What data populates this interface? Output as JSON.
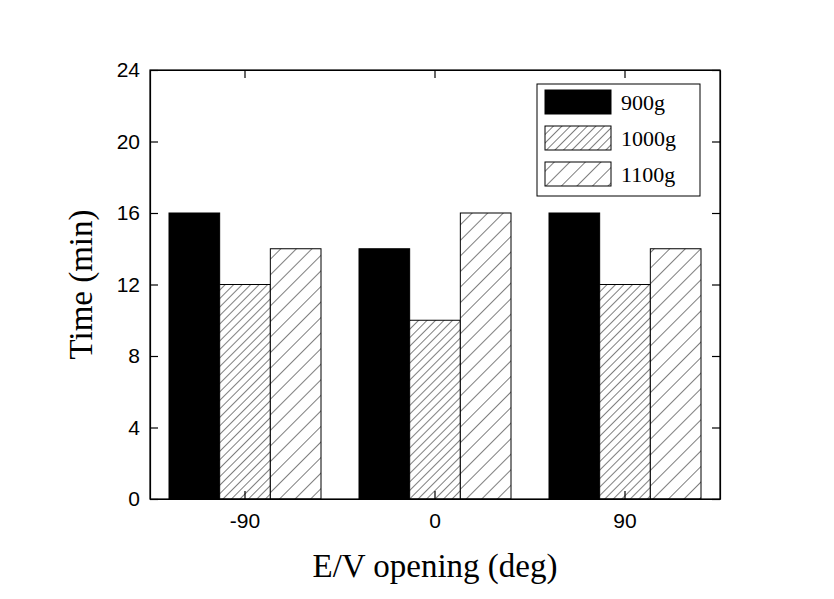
{
  "chart_data": {
    "type": "bar",
    "x_label": "E/V opening (deg)",
    "y_label": "Time (min)",
    "categories": [
      "-90",
      "0",
      "90"
    ],
    "series": [
      {
        "name": "900g",
        "color": "#000000",
        "values": [
          16,
          14,
          16
        ]
      },
      {
        "name": "1000g",
        "color": "#000000",
        "values": [
          12,
          10,
          12
        ]
      },
      {
        "name": "1100g",
        "color": "#000000",
        "values": [
          14,
          16,
          14
        ]
      }
    ],
    "ylim": [
      0,
      24
    ],
    "yticks": [
      0,
      4,
      8,
      12,
      16,
      20,
      24
    ],
    "legend": "upper right",
    "grid": false
  }
}
